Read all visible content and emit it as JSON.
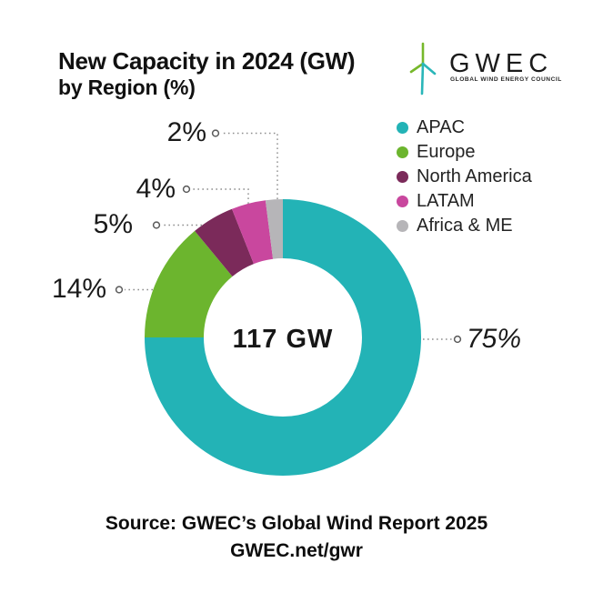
{
  "title": {
    "line1": "New Capacity in 2024 (GW)",
    "line2": "by Region (%)"
  },
  "logo": {
    "wordmark": "GWEC",
    "tagline": "GLOBAL WIND ENERGY COUNCIL",
    "turbine_green": "#76b82a",
    "turbine_teal": "#2ab6b9"
  },
  "legend": {
    "items": [
      {
        "label": "APAC",
        "color": "#23b3b6"
      },
      {
        "label": "Europe",
        "color": "#6cb52e"
      },
      {
        "label": "North America",
        "color": "#7b2a5a"
      },
      {
        "label": "LATAM",
        "color": "#c9479e"
      },
      {
        "label": "Africa & ME",
        "color": "#b6b5b8"
      }
    ]
  },
  "chart_data": {
    "type": "pie",
    "subtype": "donut",
    "title": "New Capacity in 2024 (GW) by Region (%)",
    "center_label": "117 GW",
    "total_value": 117,
    "units": "GW",
    "labels": [
      "APAC",
      "Europe",
      "North America",
      "LATAM",
      "Africa & ME"
    ],
    "values_percent": [
      75,
      14,
      5,
      4,
      2
    ],
    "colors": [
      "#23b3b6",
      "#6cb52e",
      "#7b2a5a",
      "#c9479e",
      "#b6b5b8"
    ],
    "callout_labels": [
      "75%",
      "14%",
      "5%",
      "4%",
      "2%"
    ],
    "start_angle_deg": 0,
    "direction": "clockwise",
    "legend_position": "right"
  },
  "source": {
    "line1": "Source: GWEC’s Global Wind Report 2025",
    "line2": "GWEC.net/gwr"
  }
}
